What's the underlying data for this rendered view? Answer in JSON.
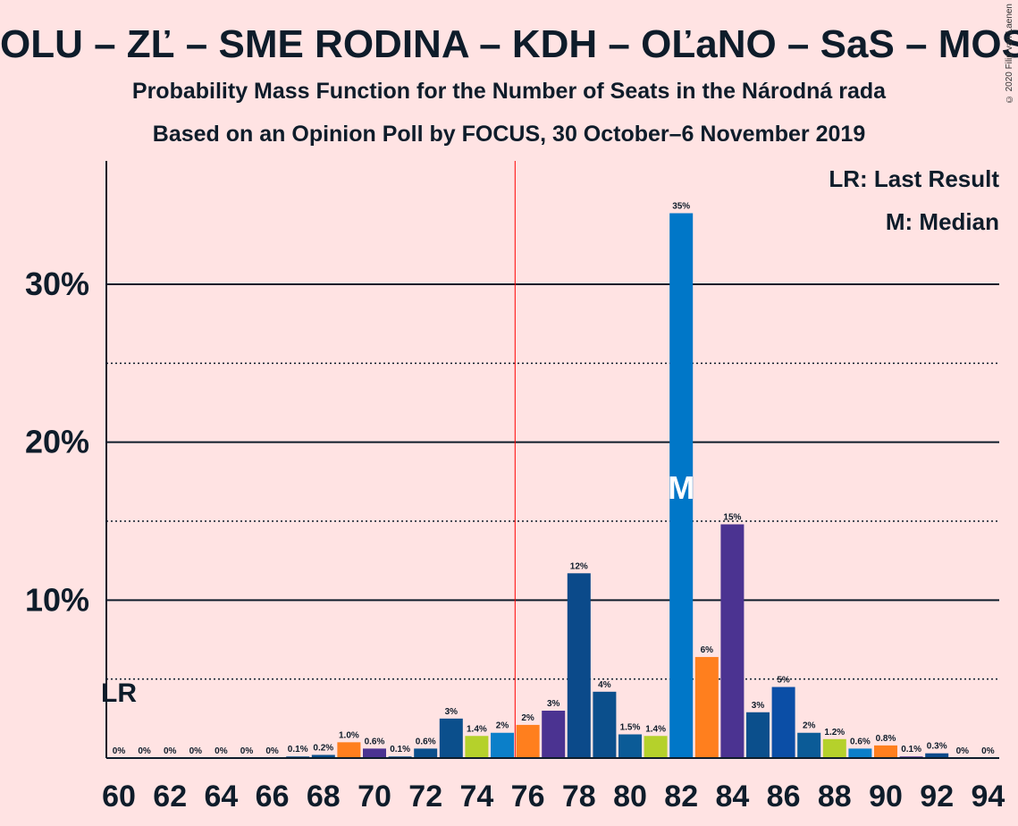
{
  "title": "OLU – ZĽ – SME RODINA – KDH – OĽaNO – SaS – MOS",
  "subtitle1": "Probability Mass Function for the Number of Seats in the Národná rada",
  "subtitle2": "Based on an Opinion Poll by FOCUS, 30 October–6 November 2019",
  "copyright": "© 2020 Filip van Laenen",
  "legend": {
    "last_result": "LR: Last Result",
    "median": "M: Median"
  },
  "lr_label": "LR",
  "median_label": "M",
  "chart_data": {
    "type": "bar",
    "categories": [
      60,
      61,
      62,
      63,
      64,
      65,
      66,
      67,
      68,
      69,
      70,
      71,
      72,
      73,
      74,
      75,
      76,
      77,
      78,
      79,
      80,
      81,
      82,
      83,
      84,
      85,
      86,
      87,
      88,
      89,
      90,
      91,
      92,
      93,
      94
    ],
    "values": [
      0,
      0,
      0,
      0,
      0,
      0,
      0,
      0.1,
      0.2,
      1.0,
      0.6,
      0.1,
      0.6,
      2.5,
      1.4,
      1.6,
      2.1,
      3.0,
      11.7,
      4.2,
      1.5,
      1.4,
      34.5,
      6.4,
      14.8,
      2.9,
      4.5,
      1.6,
      1.2,
      0.6,
      0.8,
      0.1,
      0.3,
      0,
      0
    ],
    "value_labels": [
      "0%",
      "0%",
      "0%",
      "0%",
      "0%",
      "0%",
      "0%",
      "0.1%",
      "0.2%",
      "1.0%",
      "0.6%",
      "0.1%",
      "0.6%",
      "3%",
      "1.4%",
      "2%",
      "2%",
      "3%",
      "12%",
      "4%",
      "1.5%",
      "1.4%",
      "35%",
      "6%",
      "15%",
      "3%",
      "5%",
      "2%",
      "1.2%",
      "0.6%",
      "0.8%",
      "0.1%",
      "0.3%",
      "0%",
      "0%"
    ],
    "bar_colors": [
      "#7fb33a",
      "#0073c0",
      "#2b70b8",
      "#e06a1b",
      "#4b3391",
      "#0b4a8a",
      "#1a4ba6",
      "#0b4f8c",
      "#0b4f8c",
      "#ff7f1e",
      "#4b3391",
      "#0b4f8c",
      "#0b4f8c",
      "#0b4f8c",
      "#b5d12b",
      "#0b7fc9",
      "#ff7f1e",
      "#4b3391",
      "#0b4a8a",
      "#0b4f8c",
      "#0b5b97",
      "#b5d12b",
      "#0077c8",
      "#ff7f1e",
      "#4b3391",
      "#0b4f8c",
      "#0b4ea6",
      "#0b5b97",
      "#b5d12b",
      "#0b7fc9",
      "#ff7f1e",
      "#4b3391",
      "#0b4a8a",
      "#0b4f8c",
      "#0b4f8c"
    ],
    "xtick_labels": [
      "60",
      "62",
      "64",
      "66",
      "68",
      "70",
      "72",
      "74",
      "76",
      "78",
      "80",
      "82",
      "84",
      "86",
      "88",
      "90",
      "92",
      "94"
    ],
    "ytick_labels": [
      "10%",
      "20%",
      "30%"
    ],
    "ylim": [
      0,
      37.6
    ],
    "major_gridlines": [
      10,
      20,
      30
    ],
    "minor_gridlines": [
      5,
      15,
      25
    ],
    "majority_line_x": 75.5,
    "median_x": 82,
    "last_result_x": 60,
    "legend_position": "top-right"
  }
}
